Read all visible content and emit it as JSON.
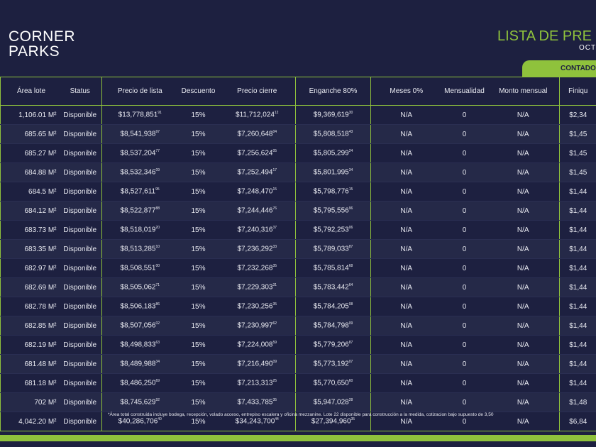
{
  "header": {
    "logo_line1": "CORNER",
    "logo_line2": "PARKS",
    "title": "LISTA DE PRE",
    "subtitle": "OCT",
    "tab": "CONTADO"
  },
  "table": {
    "columns": [
      "Área lote",
      "Status",
      "Precio de lista",
      "Descuento",
      "Precio cierre",
      "Enganche 80%",
      "Meses 0%",
      "Mensualidad",
      "Monto mensual",
      "Finiqu"
    ],
    "rows": [
      [
        "1,106.01 M²",
        "Disponible",
        {
          "amount": "$13,778,851",
          "cents": "91"
        },
        "15%",
        {
          "amount": "$11,712,024",
          "cents": "12"
        },
        {
          "amount": "$9,369,619",
          "cents": "30"
        },
        "N/A",
        "0",
        "N/A",
        "$2,34"
      ],
      [
        "685.65 M²",
        "Disponible",
        {
          "amount": "$8,541,938",
          "cents": "97"
        },
        "15%",
        {
          "amount": "$7,260,648",
          "cents": "04"
        },
        {
          "amount": "$5,808,518",
          "cents": "43"
        },
        "N/A",
        "0",
        "N/A",
        "$1,45"
      ],
      [
        "685.27 M²",
        "Disponible",
        {
          "amount": "$8,537,204",
          "cents": "77"
        },
        "15%",
        {
          "amount": "$7,256,624",
          "cents": "05"
        },
        {
          "amount": "$5,805,299",
          "cents": "24"
        },
        "N/A",
        "0",
        "N/A",
        "$1,45"
      ],
      [
        "684.88 M²",
        "Disponible",
        {
          "amount": "$8,532,346",
          "cents": "09"
        },
        "15%",
        {
          "amount": "$7,252,494",
          "cents": "17"
        },
        {
          "amount": "$5,801,995",
          "cents": "34"
        },
        "N/A",
        "0",
        "N/A",
        "$1,45"
      ],
      [
        "684.5 M²",
        "Disponible",
        {
          "amount": "$8,527,611",
          "cents": "95"
        },
        "15%",
        {
          "amount": "$7,248,470",
          "cents": "15"
        },
        {
          "amount": "$5,798,776",
          "cents": "15"
        },
        "N/A",
        "0",
        "N/A",
        "$1,44"
      ],
      [
        "684.12 M²",
        "Disponible",
        {
          "amount": "$8,522,877",
          "cents": "88"
        },
        "15%",
        {
          "amount": "$7,244,446",
          "cents": "76"
        },
        {
          "amount": "$5,795,556",
          "cents": "96"
        },
        "N/A",
        "0",
        "N/A",
        "$1,44"
      ],
      [
        "683.73 M²",
        "Disponible",
        {
          "amount": "$8,518,019",
          "cents": "20"
        },
        "15%",
        {
          "amount": "$7,240,316",
          "cents": "37"
        },
        {
          "amount": "$5,792,253",
          "cents": "06"
        },
        "N/A",
        "0",
        "N/A",
        "$1,44"
      ],
      [
        "683.35 M²",
        "Disponible",
        {
          "amount": "$8,513,285",
          "cents": "10"
        },
        "15%",
        {
          "amount": "$7,236,292",
          "cents": "33"
        },
        {
          "amount": "$5,789,033",
          "cents": "87"
        },
        "N/A",
        "0",
        "N/A",
        "$1,44"
      ],
      [
        "682.97 M²",
        "Disponible",
        {
          "amount": "$8,508,551",
          "cents": "00"
        },
        "15%",
        {
          "amount": "$7,232,268",
          "cents": "35"
        },
        {
          "amount": "$5,785,814",
          "cents": "68"
        },
        "N/A",
        "0",
        "N/A",
        "$1,44"
      ],
      [
        "682.69 M²",
        "Disponible",
        {
          "amount": "$8,505,062",
          "cents": "71"
        },
        "15%",
        {
          "amount": "$7,229,303",
          "cents": "31"
        },
        {
          "amount": "$5,783,442",
          "cents": "64"
        },
        "N/A",
        "0",
        "N/A",
        "$1,44"
      ],
      [
        "682.78 M²",
        "Disponible",
        {
          "amount": "$8,506,183",
          "cents": "86"
        },
        "15%",
        {
          "amount": "$7,230,256",
          "cents": "35"
        },
        {
          "amount": "$5,784,205",
          "cents": "08"
        },
        "N/A",
        "0",
        "N/A",
        "$1,44"
      ],
      [
        "682.85 M²",
        "Disponible",
        {
          "amount": "$8,507,056",
          "cents": "02"
        },
        "15%",
        {
          "amount": "$7,230,997",
          "cents": "62"
        },
        {
          "amount": "$5,784,798",
          "cents": "09"
        },
        "N/A",
        "0",
        "N/A",
        "$1,44"
      ],
      [
        "682.19 M²",
        "Disponible",
        {
          "amount": "$8,498,833",
          "cents": "63"
        },
        "15%",
        {
          "amount": "$7,224,008",
          "cents": "59"
        },
        {
          "amount": "$5,779,206",
          "cents": "87"
        },
        "N/A",
        "0",
        "N/A",
        "$1,44"
      ],
      [
        "681.48 M²",
        "Disponible",
        {
          "amount": "$8,489,988",
          "cents": "34"
        },
        "15%",
        {
          "amount": "$7,216,490",
          "cents": "09"
        },
        {
          "amount": "$5,773,192",
          "cents": "07"
        },
        "N/A",
        "0",
        "N/A",
        "$1,44"
      ],
      [
        "681.18 M²",
        "Disponible",
        {
          "amount": "$8,486,250",
          "cents": "69"
        },
        "15%",
        {
          "amount": "$7,213,313",
          "cents": "25"
        },
        {
          "amount": "$5,770,650",
          "cents": "60"
        },
        "N/A",
        "0",
        "N/A",
        "$1,44"
      ],
      [
        "702 M²",
        "Disponible",
        {
          "amount": "$8,745,629",
          "cents": "92"
        },
        "15%",
        {
          "amount": "$7,433,785",
          "cents": "35"
        },
        {
          "amount": "$5,947,028",
          "cents": "28"
        },
        "N/A",
        "0",
        "N/A",
        "$1,48"
      ],
      [
        "4,042.20 M²",
        "Disponible",
        {
          "amount": "$40,286,706",
          "cents": "40"
        },
        "15%",
        {
          "amount": "$34,243,700",
          "cents": "44"
        },
        {
          "amount": "$27,394,960",
          "cents": "35"
        },
        "N/A",
        "0",
        "N/A",
        "$6,84"
      ]
    ]
  },
  "footnote": "*Área total construida incluye bodega, recepción, volado acceso, entrepiso escalera y oficina mezzanine. Lote 22 disponible para construcción a la medida, cotizacion bajo supuesto de 3,50"
}
